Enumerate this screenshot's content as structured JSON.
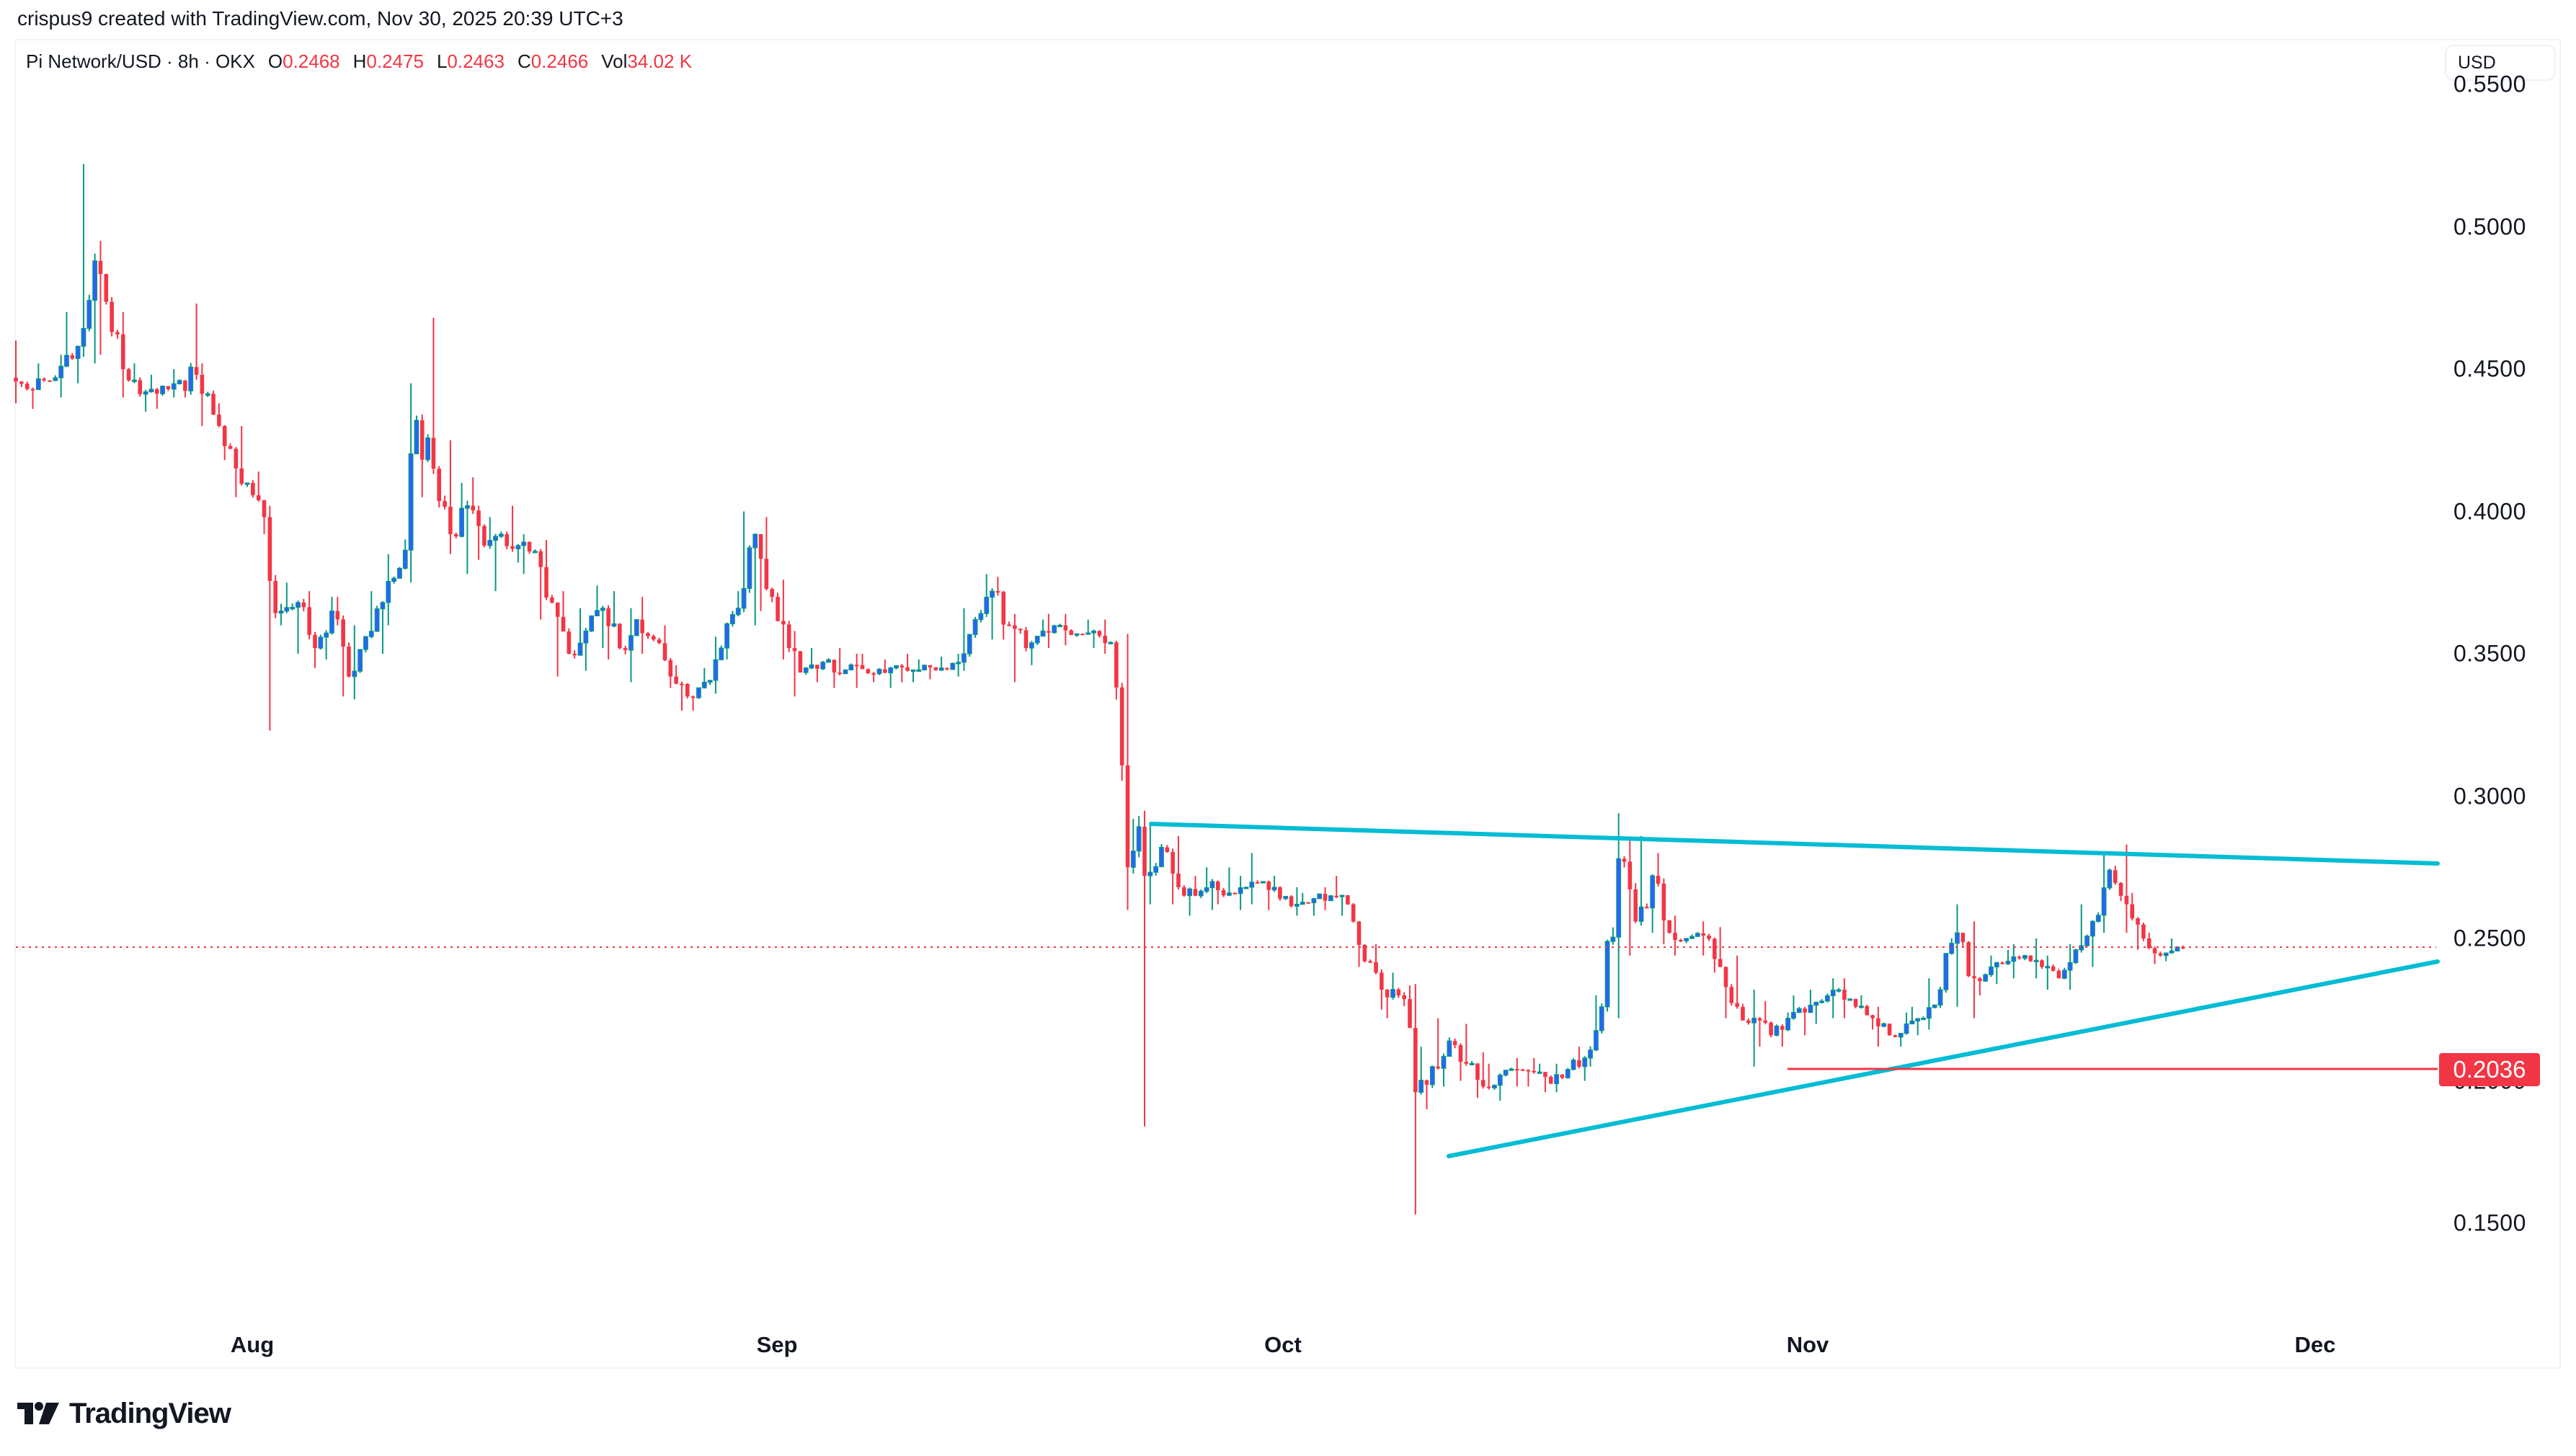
{
  "attribution": "crispus9 created with TradingView.com, Nov 30, 2025 20:39 UTC+3",
  "legend": {
    "symbol": "Pi Network/USD · 8h · OKX",
    "open_label": "O",
    "open": "0.2468",
    "high_label": "H",
    "high": "0.2475",
    "low_label": "L",
    "low": "0.2463",
    "close_label": "C",
    "close": "0.2466",
    "vol_label": "Vol",
    "vol": "34.02 K"
  },
  "currency_button": "USD",
  "price_tag": "0.2036",
  "logo_text": "TradingView",
  "colors": {
    "up_wick": "#089981",
    "up_body": "#2962ff",
    "down": "#f23645",
    "trendline": "#00bcd4",
    "support": "#f23645",
    "price_line": "#f23645"
  },
  "chart_data": {
    "type": "candlestick",
    "title": "Pi Network/USD · 8h · OKX",
    "xlabel": "",
    "ylabel": "USD",
    "x_ticks": [
      "Aug",
      "Sep",
      "Oct",
      "Nov",
      "Dec"
    ],
    "y_ticks": [
      "0.5500",
      "0.5000",
      "0.4500",
      "0.4000",
      "0.3500",
      "0.3000",
      "0.2500",
      "0.2000",
      "0.1500"
    ],
    "ylim": [
      0.102,
      0.587
    ],
    "grid": false,
    "current_price": 0.2466,
    "annotations": [
      {
        "type": "trendline",
        "name": "descending resistance",
        "from": [
          "2025-09-23",
          0.292
        ],
        "to": [
          "2025-12-04",
          0.278
        ]
      },
      {
        "type": "trendline",
        "name": "ascending support",
        "from": [
          "2025-10-11",
          0.176
        ],
        "to": [
          "2025-12-04",
          0.242
        ]
      },
      {
        "type": "hline",
        "name": "support level",
        "price": 0.2036,
        "from": "2025-11-03",
        "label": "0.2036"
      }
    ],
    "candle_interval": "8h",
    "start_date": "2025-07-18",
    "daily_ohlc": [
      [
        0.447,
        0.46,
        0.438,
        0.443
      ],
      [
        0.443,
        0.452,
        0.436,
        0.446
      ],
      [
        0.446,
        0.455,
        0.44,
        0.451
      ],
      [
        0.451,
        0.47,
        0.445,
        0.458
      ],
      [
        0.458,
        0.522,
        0.452,
        0.488
      ],
      [
        0.488,
        0.495,
        0.455,
        0.463
      ],
      [
        0.463,
        0.47,
        0.44,
        0.446
      ],
      [
        0.446,
        0.452,
        0.435,
        0.442
      ],
      [
        0.442,
        0.448,
        0.436,
        0.444
      ],
      [
        0.444,
        0.45,
        0.44,
        0.446
      ],
      [
        0.446,
        0.473,
        0.44,
        0.448
      ],
      [
        0.448,
        0.452,
        0.43,
        0.434
      ],
      [
        0.434,
        0.438,
        0.418,
        0.422
      ],
      [
        0.422,
        0.43,
        0.405,
        0.41
      ],
      [
        0.41,
        0.414,
        0.392,
        0.398
      ],
      [
        0.398,
        0.402,
        0.323,
        0.365
      ],
      [
        0.365,
        0.375,
        0.35,
        0.368
      ],
      [
        0.368,
        0.372,
        0.345,
        0.352
      ],
      [
        0.352,
        0.37,
        0.348,
        0.365
      ],
      [
        0.365,
        0.37,
        0.335,
        0.342
      ],
      [
        0.342,
        0.36,
        0.334,
        0.356
      ],
      [
        0.356,
        0.372,
        0.35,
        0.368
      ],
      [
        0.368,
        0.385,
        0.36,
        0.38
      ],
      [
        0.38,
        0.445,
        0.375,
        0.432
      ],
      [
        0.432,
        0.468,
        0.405,
        0.415
      ],
      [
        0.415,
        0.425,
        0.385,
        0.392
      ],
      [
        0.392,
        0.41,
        0.378,
        0.402
      ],
      [
        0.402,
        0.412,
        0.383,
        0.388
      ],
      [
        0.388,
        0.398,
        0.372,
        0.392
      ],
      [
        0.392,
        0.402,
        0.382,
        0.388
      ],
      [
        0.388,
        0.392,
        0.378,
        0.386
      ],
      [
        0.386,
        0.39,
        0.362,
        0.368
      ],
      [
        0.368,
        0.372,
        0.342,
        0.35
      ],
      [
        0.35,
        0.366,
        0.344,
        0.358
      ],
      [
        0.358,
        0.374,
        0.352,
        0.366
      ],
      [
        0.366,
        0.372,
        0.348,
        0.352
      ],
      [
        0.352,
        0.366,
        0.34,
        0.362
      ],
      [
        0.362,
        0.37,
        0.35,
        0.355
      ],
      [
        0.355,
        0.36,
        0.338,
        0.342
      ],
      [
        0.342,
        0.346,
        0.33,
        0.335
      ],
      [
        0.335,
        0.345,
        0.33,
        0.34
      ],
      [
        0.34,
        0.356,
        0.336,
        0.352
      ],
      [
        0.352,
        0.372,
        0.348,
        0.366
      ],
      [
        0.366,
        0.4,
        0.36,
        0.392
      ],
      [
        0.392,
        0.398,
        0.365,
        0.37
      ],
      [
        0.37,
        0.376,
        0.348,
        0.352
      ],
      [
        0.352,
        0.358,
        0.335,
        0.345
      ],
      [
        0.345,
        0.352,
        0.34,
        0.347
      ],
      [
        0.347,
        0.352,
        0.338,
        0.343
      ],
      [
        0.343,
        0.35,
        0.338,
        0.346
      ],
      [
        0.346,
        0.35,
        0.34,
        0.343
      ],
      [
        0.343,
        0.348,
        0.338,
        0.345
      ],
      [
        0.345,
        0.35,
        0.34,
        0.344
      ],
      [
        0.344,
        0.348,
        0.34,
        0.346
      ],
      [
        0.346,
        0.349,
        0.341,
        0.345
      ],
      [
        0.345,
        0.35,
        0.342,
        0.347
      ],
      [
        0.347,
        0.366,
        0.344,
        0.362
      ],
      [
        0.362,
        0.378,
        0.355,
        0.372
      ],
      [
        0.372,
        0.377,
        0.355,
        0.36
      ],
      [
        0.36,
        0.364,
        0.34,
        0.352
      ],
      [
        0.352,
        0.362,
        0.346,
        0.358
      ],
      [
        0.358,
        0.364,
        0.352,
        0.36
      ],
      [
        0.36,
        0.364,
        0.353,
        0.357
      ],
      [
        0.357,
        0.362,
        0.352,
        0.358
      ],
      [
        0.358,
        0.362,
        0.35,
        0.354
      ],
      [
        0.354,
        0.357,
        0.26,
        0.275
      ],
      [
        0.275,
        0.292,
        0.184,
        0.272
      ],
      [
        0.272,
        0.29,
        0.262,
        0.282
      ],
      [
        0.282,
        0.286,
        0.262,
        0.268
      ],
      [
        0.268,
        0.272,
        0.258,
        0.265
      ],
      [
        0.265,
        0.275,
        0.26,
        0.27
      ],
      [
        0.27,
        0.275,
        0.262,
        0.266
      ],
      [
        0.266,
        0.272,
        0.26,
        0.268
      ],
      [
        0.268,
        0.28,
        0.262,
        0.27
      ],
      [
        0.27,
        0.272,
        0.26,
        0.264
      ],
      [
        0.264,
        0.268,
        0.258,
        0.262
      ],
      [
        0.262,
        0.266,
        0.258,
        0.264
      ],
      [
        0.264,
        0.268,
        0.26,
        0.265
      ],
      [
        0.265,
        0.272,
        0.258,
        0.262
      ],
      [
        0.262,
        0.248,
        0.24,
        0.242
      ],
      [
        0.242,
        0.248,
        0.225,
        0.232
      ],
      [
        0.232,
        0.238,
        0.222,
        0.23
      ],
      [
        0.23,
        0.234,
        0.153,
        0.196
      ],
      [
        0.196,
        0.212,
        0.19,
        0.205
      ],
      [
        0.205,
        0.222,
        0.198,
        0.214
      ],
      [
        0.214,
        0.22,
        0.2,
        0.206
      ],
      [
        0.206,
        0.21,
        0.194,
        0.198
      ],
      [
        0.198,
        0.206,
        0.193,
        0.202
      ],
      [
        0.202,
        0.208,
        0.198,
        0.204
      ],
      [
        0.204,
        0.208,
        0.198,
        0.203
      ],
      [
        0.203,
        0.206,
        0.196,
        0.199
      ],
      [
        0.199,
        0.206,
        0.196,
        0.204
      ],
      [
        0.204,
        0.212,
        0.2,
        0.208
      ],
      [
        0.208,
        0.23,
        0.205,
        0.226
      ],
      [
        0.226,
        0.294,
        0.222,
        0.278
      ],
      [
        0.278,
        0.285,
        0.244,
        0.256
      ],
      [
        0.256,
        0.286,
        0.252,
        0.272
      ],
      [
        0.272,
        0.28,
        0.248,
        0.252
      ],
      [
        0.252,
        0.258,
        0.244,
        0.25
      ],
      [
        0.25,
        0.256,
        0.244,
        0.251
      ],
      [
        0.251,
        0.254,
        0.238,
        0.24
      ],
      [
        0.24,
        0.244,
        0.222,
        0.226
      ],
      [
        0.226,
        0.232,
        0.205,
        0.222
      ],
      [
        0.222,
        0.228,
        0.212,
        0.216
      ],
      [
        0.216,
        0.224,
        0.212,
        0.222
      ],
      [
        0.222,
        0.23,
        0.216,
        0.224
      ],
      [
        0.224,
        0.232,
        0.22,
        0.228
      ],
      [
        0.228,
        0.236,
        0.222,
        0.232
      ],
      [
        0.232,
        0.236,
        0.222,
        0.226
      ],
      [
        0.226,
        0.23,
        0.218,
        0.222
      ],
      [
        0.222,
        0.226,
        0.212,
        0.216
      ],
      [
        0.216,
        0.224,
        0.212,
        0.22
      ],
      [
        0.22,
        0.226,
        0.216,
        0.222
      ],
      [
        0.222,
        0.236,
        0.218,
        0.232
      ],
      [
        0.232,
        0.262,
        0.226,
        0.252
      ],
      [
        0.252,
        0.256,
        0.222,
        0.236
      ],
      [
        0.236,
        0.244,
        0.23,
        0.24
      ],
      [
        0.24,
        0.246,
        0.234,
        0.242
      ],
      [
        0.242,
        0.248,
        0.236,
        0.244
      ],
      [
        0.244,
        0.25,
        0.236,
        0.24
      ],
      [
        0.24,
        0.244,
        0.232,
        0.236
      ],
      [
        0.236,
        0.248,
        0.232,
        0.246
      ],
      [
        0.246,
        0.262,
        0.24,
        0.256
      ],
      [
        0.256,
        0.28,
        0.252,
        0.274
      ],
      [
        0.274,
        0.283,
        0.252,
        0.262
      ],
      [
        0.262,
        0.266,
        0.246,
        0.25
      ],
      [
        0.25,
        0.252,
        0.241,
        0.244
      ],
      [
        0.244,
        0.25,
        0.242,
        0.247
      ],
      [
        0.247,
        0.2475,
        0.2463,
        0.2466
      ]
    ]
  }
}
